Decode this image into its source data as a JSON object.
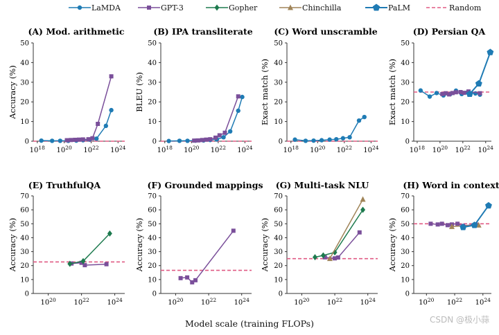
{
  "legend": [
    {
      "name": "LaMDA",
      "color": "#1f7bb4",
      "marker": "circle",
      "line": "solid"
    },
    {
      "name": "GPT-3",
      "color": "#7a4f9a",
      "marker": "square",
      "line": "solid"
    },
    {
      "name": "Gopher",
      "color": "#1d7a4e",
      "marker": "diamond",
      "line": "solid"
    },
    {
      "name": "Chinchilla",
      "color": "#a08458",
      "marker": "triangle",
      "line": "solid"
    },
    {
      "name": "PaLM",
      "color": "#1f7bb4",
      "marker": "pentagon",
      "line": "solid"
    },
    {
      "name": "Random",
      "color": "#e05a83",
      "marker": "none",
      "line": "dashed"
    }
  ],
  "x_axis_label": "Model scale (training FLOPs)",
  "watermark": "CSDN @极小蒜",
  "chart_data": [
    {
      "type": "line",
      "title": "(A) Mod. arithmetic",
      "ylabel": "Accuracy (%)",
      "ylim": [
        0,
        50
      ],
      "yticks": [
        0,
        10,
        20,
        30,
        40,
        50
      ],
      "xlim_log10": [
        17.7,
        24.5
      ],
      "xticks_log10": [
        18,
        20,
        22,
        24
      ],
      "xtick_labels": [
        "10^18",
        "10^20",
        "10^22",
        "10^24"
      ],
      "random_baseline": 0,
      "series": [
        {
          "name": "LaMDA",
          "x_log10": [
            18.3,
            19.1,
            19.7,
            20.3,
            20.9,
            21.4,
            21.9,
            22.4,
            23.1,
            23.5
          ],
          "y": [
            0.3,
            0.2,
            0.2,
            0.2,
            0.3,
            0.5,
            0.8,
            1.3,
            7.8,
            15.8
          ]
        },
        {
          "name": "GPT-3",
          "x_log10": [
            20.2,
            20.5,
            20.8,
            21.1,
            21.4,
            21.8,
            22.1,
            22.5,
            23.5
          ],
          "y": [
            0.5,
            0.6,
            0.7,
            0.8,
            0.9,
            1.0,
            1.5,
            8.8,
            33.0
          ]
        }
      ]
    },
    {
      "type": "line",
      "title": "(B) IPA transliterate",
      "ylabel": "BLEU (%)",
      "ylim": [
        0,
        50
      ],
      "yticks": [
        0,
        10,
        20,
        30,
        40,
        50
      ],
      "xlim_log10": [
        17.7,
        24.5
      ],
      "xticks_log10": [
        18,
        20,
        22,
        24
      ],
      "xtick_labels": [
        "10^18",
        "10^20",
        "10^22",
        "10^24"
      ],
      "random_baseline": 0,
      "series": [
        {
          "name": "LaMDA",
          "x_log10": [
            18.3,
            19.1,
            19.7,
            20.3,
            20.9,
            21.4,
            21.9,
            22.4,
            22.9,
            23.5,
            23.8
          ],
          "y": [
            0.1,
            0.2,
            0.2,
            0.3,
            0.4,
            0.6,
            0.9,
            2.0,
            5.0,
            15.5,
            22.5
          ]
        },
        {
          "name": "GPT-3",
          "x_log10": [
            20.2,
            20.5,
            20.8,
            21.1,
            21.4,
            21.8,
            22.1,
            22.5,
            23.5
          ],
          "y": [
            0.3,
            0.4,
            0.6,
            0.8,
            1.0,
            1.8,
            3.0,
            4.3,
            22.8
          ]
        }
      ]
    },
    {
      "type": "line",
      "title": "(C) Word unscramble",
      "ylabel": "Exact match (%)",
      "ylim": [
        0,
        50
      ],
      "yticks": [
        0,
        10,
        20,
        30,
        40,
        50
      ],
      "xlim_log10": [
        17.7,
        24.5
      ],
      "xticks_log10": [
        18,
        20,
        22,
        24
      ],
      "xtick_labels": [
        "10^18",
        "10^20",
        "10^22",
        "10^24"
      ],
      "random_baseline": 0,
      "series": [
        {
          "name": "LaMDA",
          "x_log10": [
            18.3,
            19.1,
            19.7,
            20.3,
            20.9,
            21.4,
            21.9,
            22.4,
            23.1,
            23.5
          ],
          "y": [
            0.8,
            0.2,
            0.3,
            0.5,
            0.8,
            1.0,
            1.5,
            2.0,
            10.5,
            12.3
          ]
        }
      ]
    },
    {
      "type": "line",
      "title": "(D) Persian QA",
      "ylabel": "Exact match (%)",
      "ylim": [
        0,
        50
      ],
      "yticks": [
        0,
        10,
        20,
        30,
        40,
        50
      ],
      "xlim_log10": [
        17.7,
        24.5
      ],
      "xticks_log10": [
        18,
        20,
        22,
        24
      ],
      "xtick_labels": [
        "10^18",
        "10^20",
        "10^22",
        "10^24"
      ],
      "random_baseline": 25,
      "series": [
        {
          "name": "LaMDA",
          "x_log10": [
            18.3,
            19.1,
            19.7,
            20.3,
            20.9,
            21.4,
            21.9,
            22.4,
            23.1,
            23.5
          ],
          "y": [
            25.8,
            22.7,
            24.5,
            23.3,
            24.0,
            25.7,
            24.0,
            24.8,
            24.3,
            23.7
          ]
        },
        {
          "name": "GPT-3",
          "x_log10": [
            20.2,
            20.5,
            20.8,
            21.1,
            21.4,
            21.8,
            22.1,
            22.5,
            23.5
          ],
          "y": [
            24.0,
            24.4,
            23.8,
            24.5,
            24.9,
            25.0,
            24.6,
            25.3,
            24.4
          ]
        },
        {
          "name": "PaLM",
          "x_log10": [
            22.6,
            23.4,
            24.4
          ],
          "y": [
            24.0,
            29.3,
            45.2
          ]
        }
      ]
    },
    {
      "type": "line",
      "title": "(E) TruthfulQA",
      "ylabel": "Accuracy (%)",
      "ylim": [
        0,
        70
      ],
      "yticks": [
        0,
        10,
        20,
        30,
        40,
        50,
        60,
        70
      ],
      "xlim_log10": [
        19.1,
        24.6
      ],
      "xticks_log10": [
        20,
        22,
        24
      ],
      "xtick_labels": [
        "10^20",
        "10^22",
        "10^24"
      ],
      "random_baseline": 22.6,
      "series": [
        {
          "name": "GPT-3",
          "x_log10": [
            21.4,
            22.0,
            22.2,
            23.5
          ],
          "y": [
            21.5,
            22.0,
            20.3,
            21.0
          ]
        },
        {
          "name": "Gopher",
          "x_log10": [
            21.3,
            22.1,
            23.7
          ],
          "y": [
            21.3,
            23.2,
            43.0
          ]
        }
      ]
    },
    {
      "type": "line",
      "title": "(F) Grounded mappings",
      "ylabel": "Accuracy (%)",
      "ylim": [
        0,
        70
      ],
      "yticks": [
        0,
        10,
        20,
        30,
        40,
        50,
        60,
        70
      ],
      "xlim_log10": [
        19.1,
        24.6
      ],
      "xticks_log10": [
        20,
        22,
        24
      ],
      "xtick_labels": [
        "10^20",
        "10^22",
        "10^24"
      ],
      "random_baseline": 16.6,
      "series": [
        {
          "name": "GPT-3",
          "x_log10": [
            20.3,
            20.7,
            21.0,
            21.2,
            23.5
          ],
          "y": [
            11.0,
            11.5,
            8.0,
            9.5,
            45.0
          ]
        }
      ]
    },
    {
      "type": "line",
      "title": "(G) Multi-task NLU",
      "ylabel": "Accuracy (%)",
      "ylim": [
        0,
        70
      ],
      "yticks": [
        0,
        10,
        20,
        30,
        40,
        50,
        60,
        70
      ],
      "xlim_log10": [
        19.1,
        24.6
      ],
      "xticks_log10": [
        20,
        22,
        24
      ],
      "xtick_labels": [
        "10^20",
        "10^22",
        "10^24"
      ],
      "random_baseline": 25,
      "series": [
        {
          "name": "GPT-3",
          "x_log10": [
            21.4,
            22.0,
            22.2,
            23.5
          ],
          "y": [
            25.9,
            25.2,
            25.8,
            43.8
          ]
        },
        {
          "name": "Gopher",
          "x_log10": [
            20.8,
            21.3,
            22.0,
            23.7
          ],
          "y": [
            26.0,
            27.3,
            29.5,
            60.0
          ]
        },
        {
          "name": "Chinchilla",
          "x_log10": [
            21.7,
            23.7
          ],
          "y": [
            25.0,
            67.5
          ]
        }
      ]
    },
    {
      "type": "line",
      "title": "(H) Word in context",
      "ylabel": "Accuracy (%)",
      "ylim": [
        0,
        70
      ],
      "yticks": [
        0,
        10,
        20,
        30,
        40,
        50,
        60,
        70
      ],
      "xlim_log10": [
        19.1,
        24.6
      ],
      "xticks_log10": [
        20,
        22,
        24
      ],
      "xtick_labels": [
        "10^20",
        "10^22",
        "10^24"
      ],
      "random_baseline": 50,
      "series": [
        {
          "name": "GPT-3",
          "x_log10": [
            20.3,
            20.8,
            21.1,
            21.5,
            21.8,
            22.2,
            22.6,
            23.5
          ],
          "y": [
            50.0,
            49.5,
            50.0,
            49.0,
            49.5,
            50.0,
            48.5,
            49.5
          ]
        },
        {
          "name": "Chinchilla",
          "x_log10": [
            21.8,
            23.7
          ],
          "y": [
            48.0,
            49.0
          ]
        },
        {
          "name": "PaLM",
          "x_log10": [
            22.6,
            23.4,
            24.4
          ],
          "y": [
            47.5,
            49.0,
            63.0
          ]
        }
      ]
    }
  ]
}
